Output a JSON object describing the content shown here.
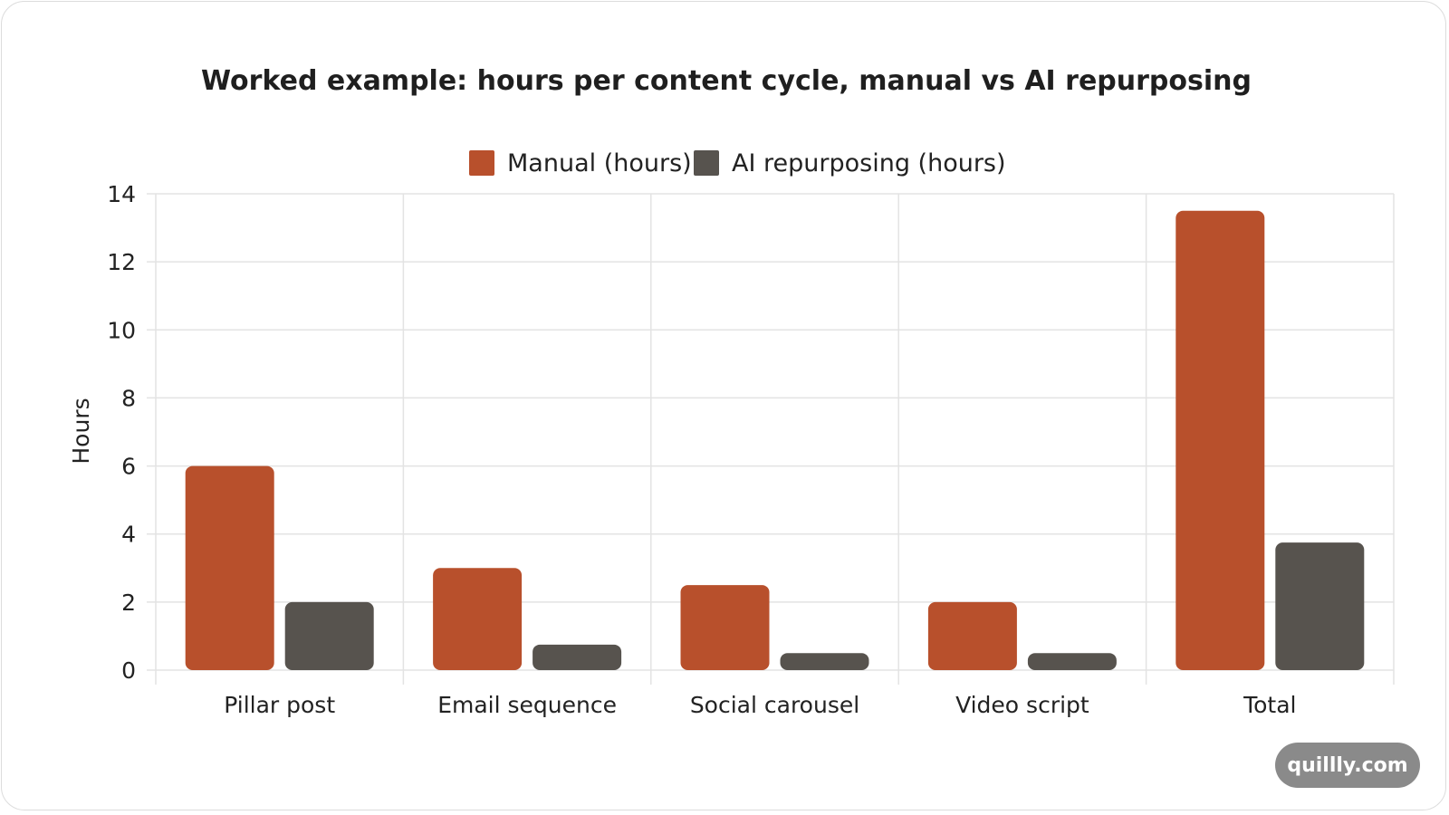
{
  "watermark": "quillly.com",
  "colors": {
    "manual": "#b8502c",
    "ai": "#57534e"
  },
  "chart_data": {
    "type": "bar",
    "title": "Worked example: hours per content cycle, manual vs AI repurposing",
    "xlabel": "",
    "ylabel": "Hours",
    "ylim": [
      0,
      14
    ],
    "yticks": [
      0,
      2,
      4,
      6,
      8,
      10,
      12,
      14
    ],
    "categories": [
      "Pillar post",
      "Email sequence",
      "Social carousel",
      "Video script",
      "Total"
    ],
    "series": [
      {
        "name": "Manual (hours)",
        "values": [
          6,
          3,
          2.5,
          2,
          13.5
        ]
      },
      {
        "name": "AI repurposing (hours)",
        "values": [
          2,
          0.75,
          0.5,
          0.5,
          3.75
        ]
      }
    ],
    "legend": "top-center",
    "grid": true
  }
}
